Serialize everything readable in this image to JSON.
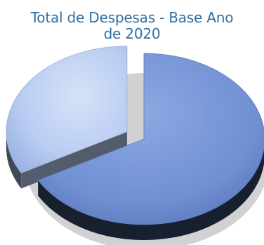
{
  "chart_data": {
    "type": "pie",
    "title_line1": "Total de Despesas - Base Ano",
    "title_line2": "de 2020",
    "values": [
      67,
      33
    ],
    "colors": [
      "#6f8fd2",
      "#b9ccf2"
    ],
    "exploded": [
      false,
      true
    ],
    "legend": "none",
    "data_labels": "none"
  }
}
